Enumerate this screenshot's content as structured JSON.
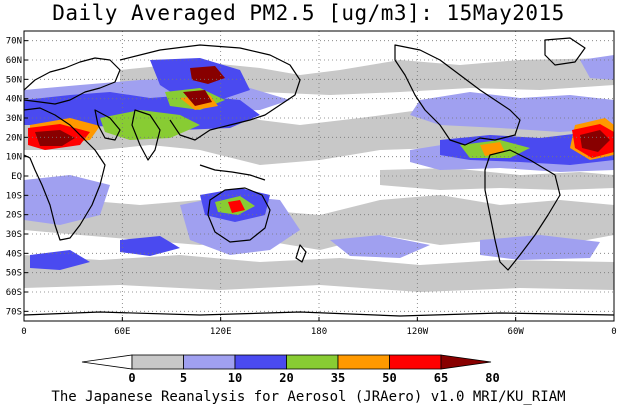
{
  "title": "Daily Averaged PM2.5 [ug/m3]: 15May2015",
  "footer": "The Japanese Reanalysis for Aerosol (JRAero) v1.0 MRI/KU_RIAM",
  "map": {
    "lat_labels": [
      "70N",
      "60N",
      "50N",
      "40N",
      "30N",
      "20N",
      "10N",
      "EQ",
      "10S",
      "20S",
      "30S",
      "40S",
      "50S",
      "60S",
      "70S"
    ],
    "lon_labels": [
      "0",
      "60E",
      "120E",
      "180",
      "120W",
      "60W",
      "0"
    ],
    "lon_range": [
      0,
      360
    ],
    "lat_range": [
      -75,
      75
    ],
    "gridlines": true
  },
  "colorbar": {
    "levels": [
      "0",
      "5",
      "10",
      "20",
      "35",
      "50",
      "65",
      "80"
    ],
    "colors": [
      "#ffffff",
      "#c8c8c8",
      "#a0a0f0",
      "#4a4af0",
      "#88cc33",
      "#ff9900",
      "#ff0000",
      "#880000"
    ]
  }
}
